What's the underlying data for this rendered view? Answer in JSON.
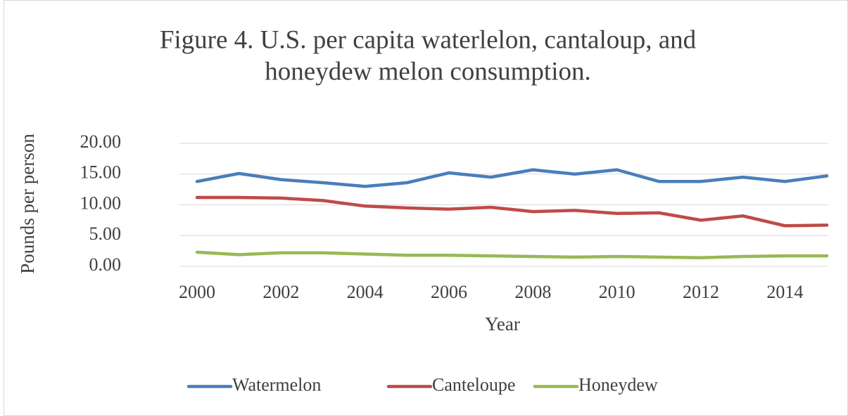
{
  "chart_data": {
    "type": "line",
    "title": [
      "Figure 4. U.S. per capita waterlelon, cantaloup, and",
      "honeydew melon consumption."
    ],
    "x_label": "Year",
    "y_label": "Pounds per person",
    "x": [
      2000,
      2001,
      2002,
      2003,
      2004,
      2005,
      2006,
      2007,
      2008,
      2009,
      2010,
      2011,
      2012,
      2013,
      2014,
      2015
    ],
    "series": [
      {
        "name": "Watermelon",
        "color": "#4a7ebb",
        "values": [
          13.8,
          15.1,
          14.1,
          13.6,
          13.0,
          13.6,
          15.2,
          14.5,
          15.7,
          15.0,
          15.7,
          13.8,
          13.8,
          14.5,
          13.8,
          14.7
        ]
      },
      {
        "name": "Canteloupe",
        "color": "#be4b48",
        "values": [
          11.2,
          11.2,
          11.1,
          10.7,
          9.8,
          9.5,
          9.3,
          9.6,
          8.9,
          9.1,
          8.6,
          8.7,
          7.5,
          8.2,
          6.6,
          6.7
        ]
      },
      {
        "name": "Honeydew",
        "color": "#98b954",
        "values": [
          2.3,
          1.9,
          2.2,
          2.2,
          2.0,
          1.8,
          1.8,
          1.7,
          1.6,
          1.5,
          1.6,
          1.5,
          1.4,
          1.6,
          1.7,
          1.7
        ]
      }
    ],
    "xlim": [
      2000,
      2015
    ],
    "xticks": [
      2000,
      2002,
      2004,
      2006,
      2008,
      2010,
      2012,
      2014
    ],
    "ylim": [
      0,
      20
    ],
    "yticks": [
      {
        "value": 0,
        "label": "0.00"
      },
      {
        "value": 5,
        "label": "5.00"
      },
      {
        "value": 10,
        "label": "10.00"
      },
      {
        "value": 15,
        "label": "15.00"
      },
      {
        "value": 20,
        "label": "20.00"
      }
    ],
    "grid": true,
    "legend": "bottom"
  }
}
